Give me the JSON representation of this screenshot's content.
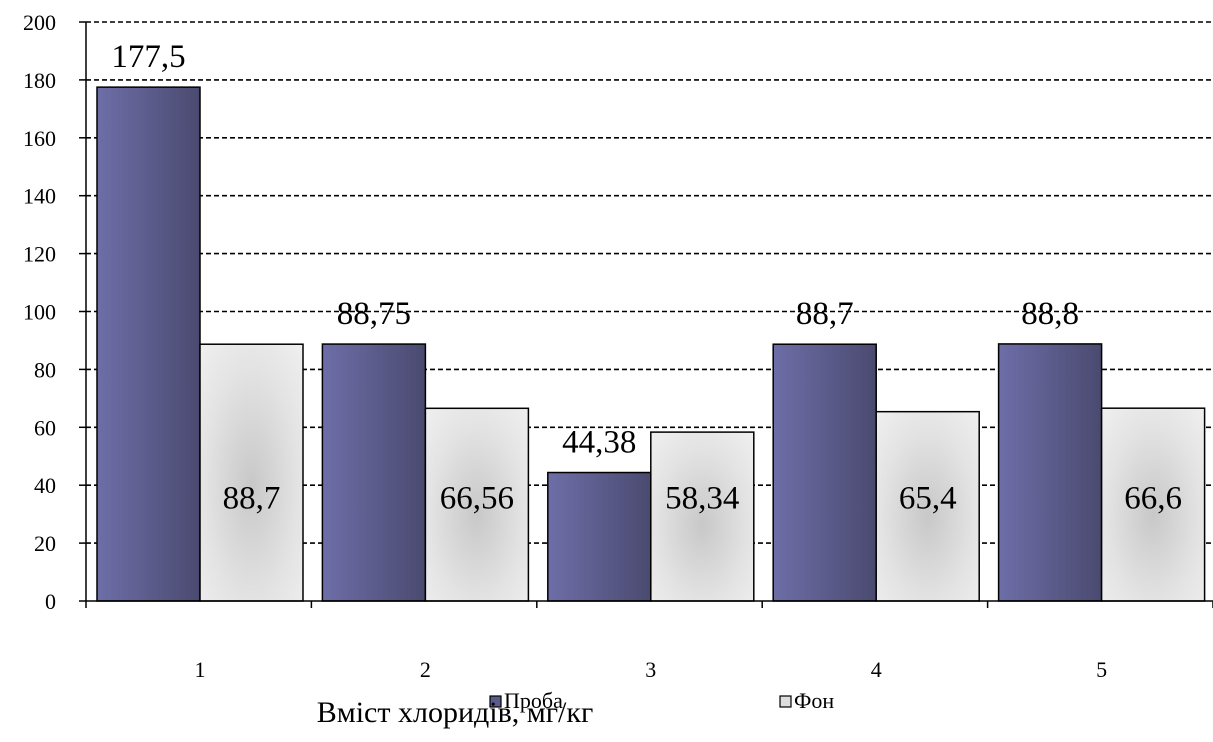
{
  "chart_data": {
    "type": "bar",
    "categories": [
      "1",
      "2",
      "3",
      "4",
      "5"
    ],
    "series": [
      {
        "name": "Проба",
        "values": [
          177.5,
          88.75,
          44.38,
          88.7,
          88.8
        ],
        "labels": [
          "177,5",
          "88,75",
          "44,38",
          "88,7",
          "88,8"
        ],
        "color": "#5a5a8c"
      },
      {
        "name": "Фон",
        "values": [
          88.7,
          66.56,
          58.34,
          65.4,
          66.6
        ],
        "labels": [
          "88,7",
          "66,56",
          "58,34",
          "65,4",
          "66,6"
        ],
        "color": "#dedede"
      }
    ],
    "yticks": [
      "0",
      "20",
      "40",
      "60",
      "80",
      "100",
      "120",
      "140",
      "160",
      "180",
      "200"
    ],
    "ylim": [
      0,
      200
    ],
    "grid": true,
    "legend": "bottom-center",
    "xlabel": "Вміст хлоридів, мг/кг",
    "ylabel": "",
    "title": ""
  }
}
